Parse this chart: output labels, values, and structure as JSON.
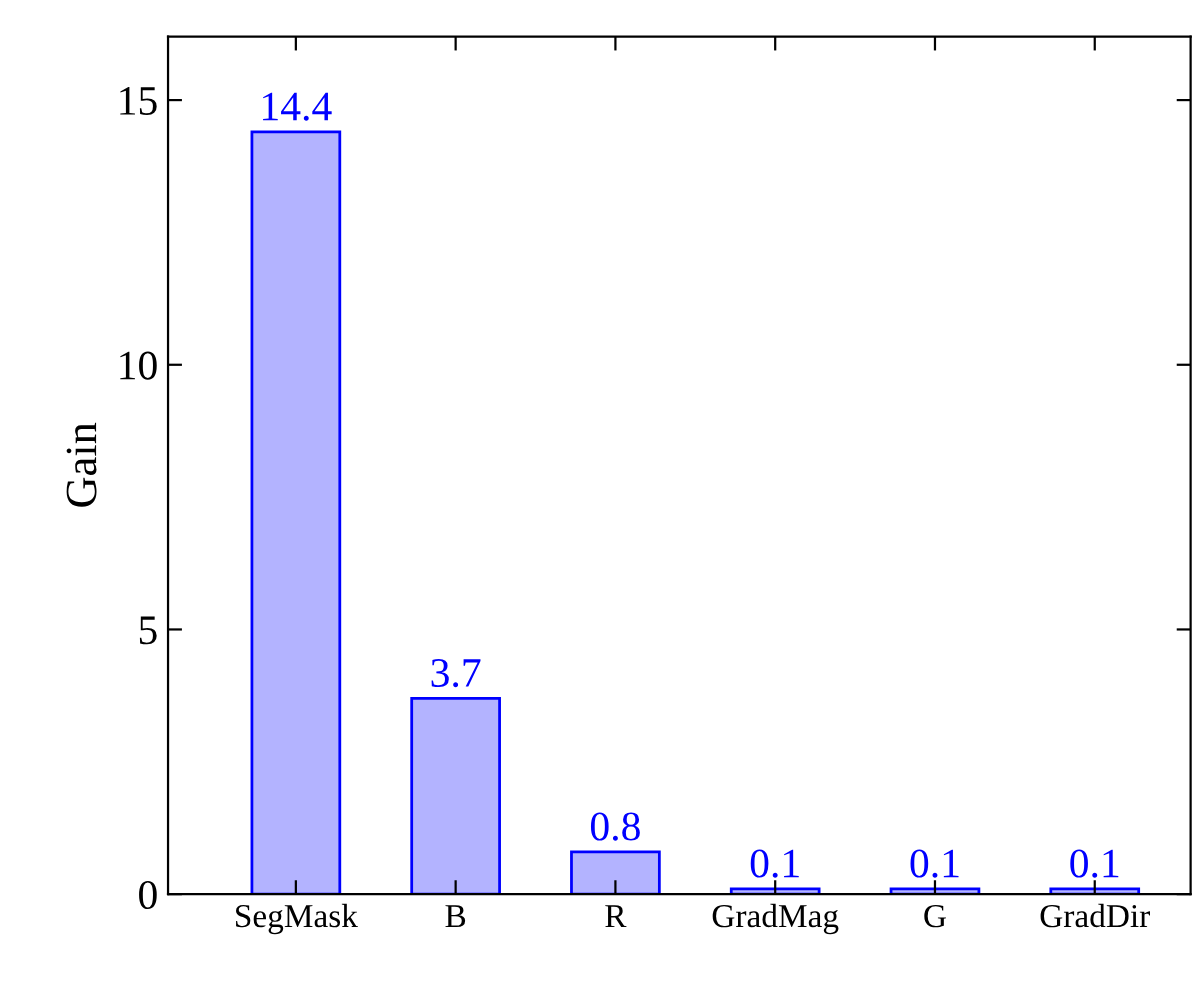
{
  "chart_data": {
    "type": "bar",
    "ylabel": "Gain",
    "categories": [
      "SegMask",
      "B",
      "R",
      "GradMag",
      "G",
      "GradDir"
    ],
    "values": [
      14.4,
      3.7,
      0.8,
      0.1,
      0.1,
      0.1
    ],
    "color": "#b3b3ff",
    "ylim": [
      0,
      16.2
    ],
    "yticks": [
      0,
      5,
      10,
      15
    ],
    "data_labels": true,
    "grid": false,
    "legend": false
  }
}
